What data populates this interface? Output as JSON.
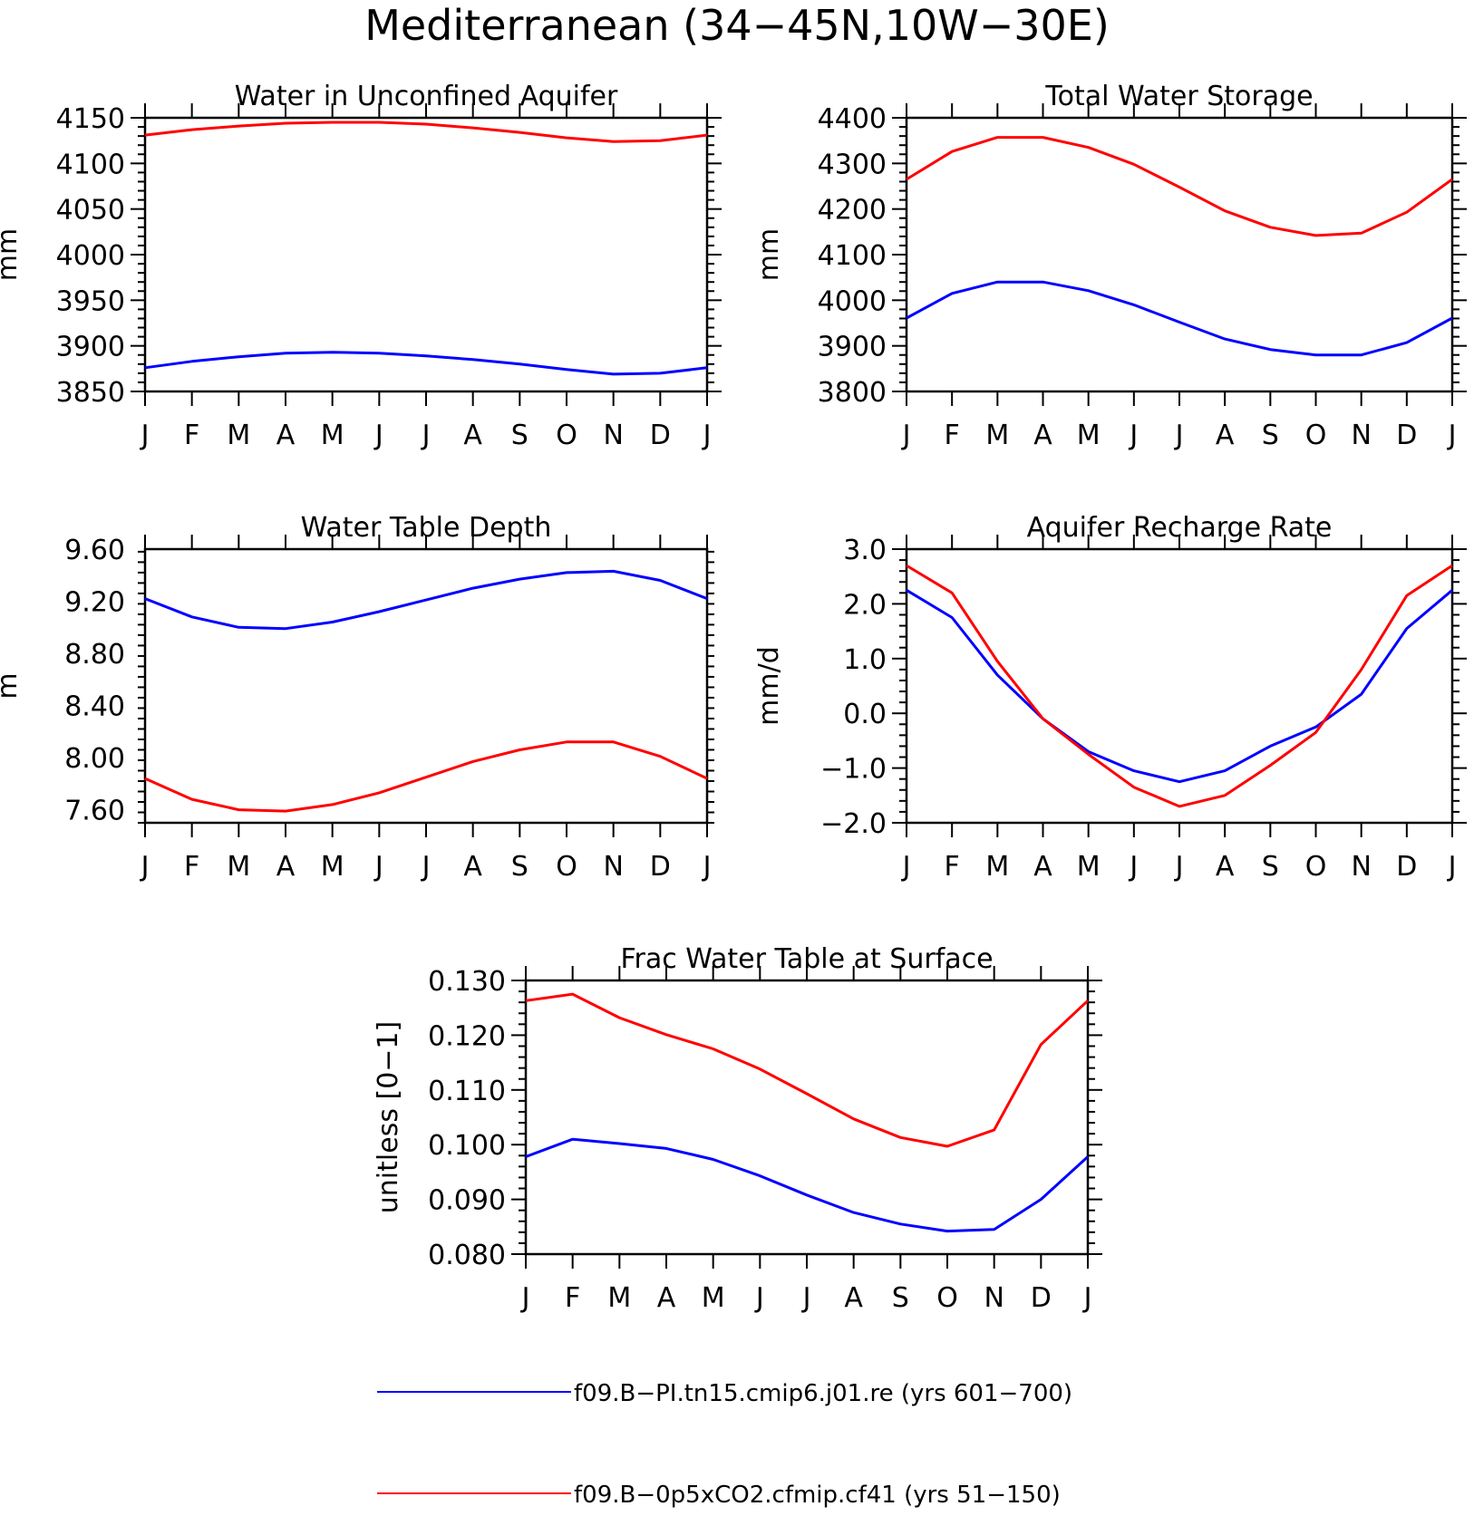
{
  "figure_title": "Mediterranean (34−45N,10W−30E)",
  "colors": {
    "series_a": "#0000ff",
    "series_b": "#ff0000",
    "axis": "#000000"
  },
  "legend": [
    {
      "label": "f09.B−PI.tn15.cmip6.j01.re (yrs 601−700)",
      "color": "#0000ff"
    },
    {
      "label": "f09.B−0p5xCO2.cfmip.cf41 (yrs 51−150)",
      "color": "#ff0000"
    }
  ],
  "chart_data": [
    {
      "type": "line",
      "title": "Water in Unconfined Aquifer",
      "ylabel": "mm",
      "xlabel": "",
      "categories": [
        "J",
        "F",
        "M",
        "A",
        "M",
        "J",
        "J",
        "A",
        "S",
        "O",
        "N",
        "D",
        "J"
      ],
      "ylim": [
        3850,
        4150
      ],
      "yticks": [
        "4150",
        "4100",
        "4050",
        "4000",
        "3950",
        "3900",
        "3850"
      ],
      "ytick_values": [
        4150,
        4100,
        4050,
        4000,
        3950,
        3900,
        3850
      ],
      "grid": false,
      "series": [
        {
          "color": "#0000ff",
          "values": [
            3876,
            3883,
            3888,
            3892,
            3893,
            3892,
            3889,
            3885,
            3880,
            3874,
            3869,
            3870,
            3876
          ]
        },
        {
          "color": "#ff0000",
          "values": [
            4131,
            4137,
            4141,
            4144,
            4145,
            4145,
            4143,
            4139,
            4134,
            4128,
            4124,
            4125,
            4131
          ]
        }
      ]
    },
    {
      "type": "line",
      "title": "Total Water Storage",
      "ylabel": "mm",
      "xlabel": "",
      "categories": [
        "J",
        "F",
        "M",
        "A",
        "M",
        "J",
        "J",
        "A",
        "S",
        "O",
        "N",
        "D",
        "J"
      ],
      "ylim": [
        3800,
        4400
      ],
      "yticks": [
        "4400",
        "4300",
        "4200",
        "4100",
        "4000",
        "3900",
        "3800"
      ],
      "ytick_values": [
        4400,
        4300,
        4200,
        4100,
        4000,
        3900,
        3800
      ],
      "grid": false,
      "series": [
        {
          "color": "#0000ff",
          "values": [
            3961,
            4015,
            4040,
            4040,
            4021,
            3990,
            3952,
            3915,
            3892,
            3880,
            3880,
            3907,
            3961
          ]
        },
        {
          "color": "#ff0000",
          "values": [
            4265,
            4326,
            4357,
            4357,
            4335,
            4298,
            4248,
            4196,
            4160,
            4142,
            4147,
            4193,
            4265
          ]
        }
      ]
    },
    {
      "type": "line",
      "title": "Water Table Depth",
      "ylabel": "m",
      "xlabel": "",
      "categories": [
        "J",
        "F",
        "M",
        "A",
        "M",
        "J",
        "J",
        "A",
        "S",
        "O",
        "N",
        "D",
        "J"
      ],
      "ylim": [
        7.5,
        9.6
      ],
      "yticks": [
        "9.60",
        "9.20",
        "8.80",
        "8.40",
        "8.00",
        "7.60"
      ],
      "ytick_values": [
        9.6,
        9.2,
        8.8,
        8.4,
        8.0,
        7.6
      ],
      "grid": false,
      "series": [
        {
          "color": "#0000ff",
          "values": [
            9.22,
            9.08,
            9.0,
            8.99,
            9.04,
            9.12,
            9.21,
            9.3,
            9.37,
            9.42,
            9.43,
            9.36,
            9.22
          ]
        },
        {
          "color": "#ff0000",
          "values": [
            7.84,
            7.68,
            7.6,
            7.59,
            7.64,
            7.73,
            7.85,
            7.97,
            8.06,
            8.12,
            8.12,
            8.01,
            7.84
          ]
        }
      ]
    },
    {
      "type": "line",
      "title": "Aquifer Recharge Rate",
      "ylabel": "mm/d",
      "xlabel": "",
      "categories": [
        "J",
        "F",
        "M",
        "A",
        "M",
        "J",
        "J",
        "A",
        "S",
        "O",
        "N",
        "D",
        "J"
      ],
      "ylim": [
        -2.0,
        3.0
      ],
      "yticks": [
        "3.0",
        "2.0",
        "1.0",
        "0.0",
        "−1.0",
        "−2.0"
      ],
      "ytick_values": [
        3.0,
        2.0,
        1.0,
        0.0,
        -1.0,
        -2.0
      ],
      "grid": false,
      "series": [
        {
          "color": "#0000ff",
          "values": [
            2.25,
            1.75,
            0.7,
            -0.1,
            -0.7,
            -1.05,
            -1.25,
            -1.05,
            -0.6,
            -0.25,
            0.35,
            1.55,
            2.25
          ]
        },
        {
          "color": "#ff0000",
          "values": [
            2.7,
            2.2,
            0.95,
            -0.1,
            -0.75,
            -1.35,
            -1.7,
            -1.5,
            -0.95,
            -0.35,
            0.8,
            2.15,
            2.7
          ]
        }
      ]
    },
    {
      "type": "line",
      "title": "Frac Water Table at Surface",
      "ylabel": "unitless [0−1]",
      "xlabel": "",
      "categories": [
        "J",
        "F",
        "M",
        "A",
        "M",
        "J",
        "J",
        "A",
        "S",
        "O",
        "N",
        "D",
        "J"
      ],
      "ylim": [
        0.08,
        0.13
      ],
      "yticks": [
        "0.130",
        "0.120",
        "0.110",
        "0.100",
        "0.090",
        "0.080"
      ],
      "ytick_values": [
        0.13,
        0.12,
        0.11,
        0.1,
        0.09,
        0.08
      ],
      "grid": false,
      "series": [
        {
          "color": "#0000ff",
          "values": [
            0.0978,
            0.101,
            0.1002,
            0.0993,
            0.0973,
            0.0943,
            0.0908,
            0.0876,
            0.0855,
            0.0842,
            0.0845,
            0.09,
            0.0978
          ]
        },
        {
          "color": "#ff0000",
          "values": [
            0.1263,
            0.1275,
            0.1232,
            0.1201,
            0.1175,
            0.1138,
            0.1093,
            0.1047,
            0.1013,
            0.0997,
            0.1027,
            0.1183,
            0.1263
          ]
        }
      ]
    }
  ]
}
